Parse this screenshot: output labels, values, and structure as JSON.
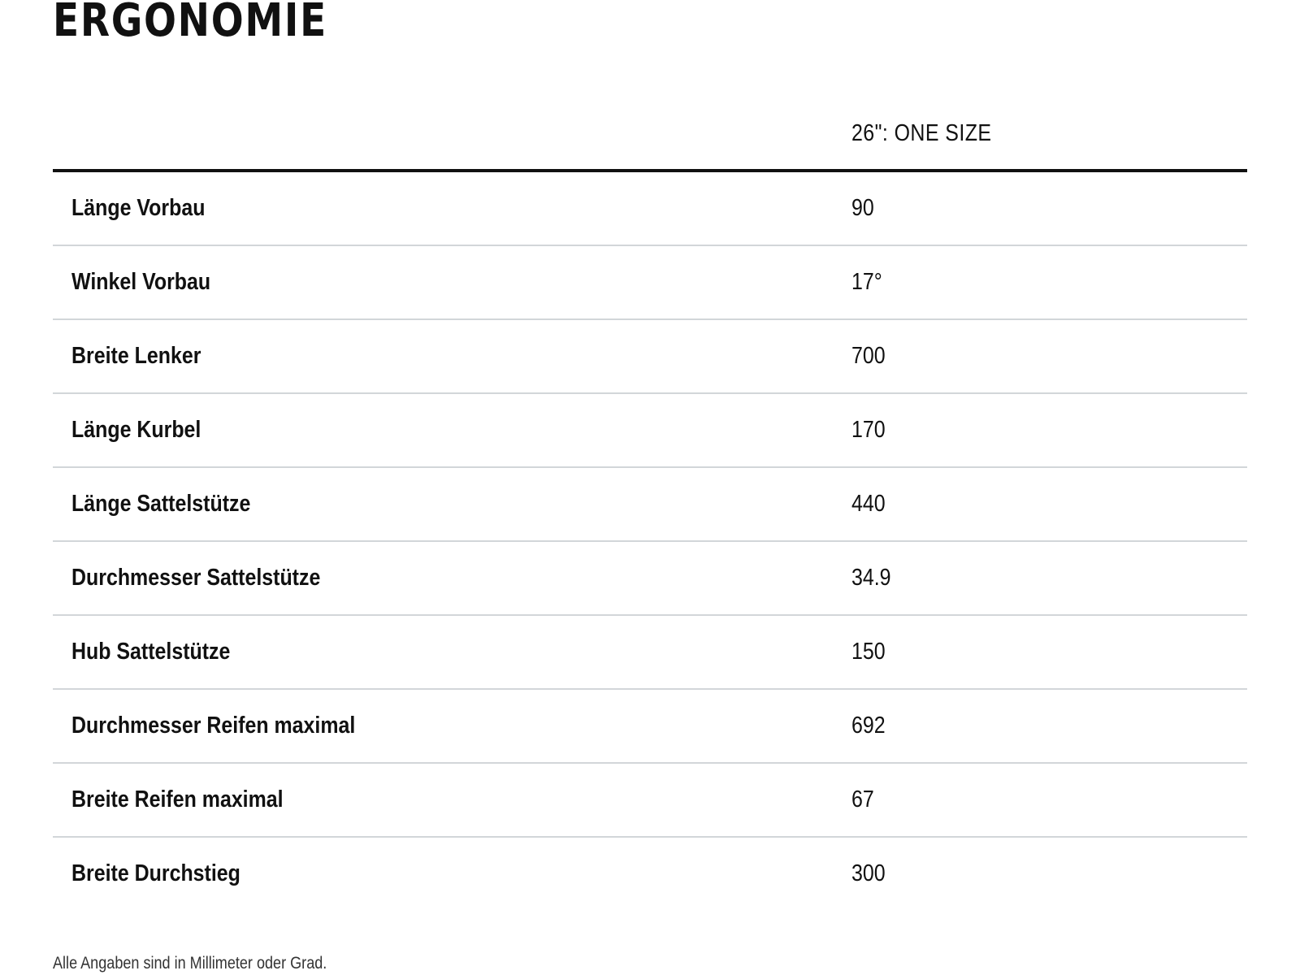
{
  "title": "ERGONOMIE",
  "table": {
    "column_header": "26\": ONE SIZE",
    "rows": [
      {
        "label": "Länge Vorbau",
        "value": "90"
      },
      {
        "label": "Winkel Vorbau",
        "value": "17°"
      },
      {
        "label": "Breite Lenker",
        "value": "700"
      },
      {
        "label": "Länge Kurbel",
        "value": "170"
      },
      {
        "label": "Länge Sattelstütze",
        "value": "440"
      },
      {
        "label": "Durchmesser Sattelstütze",
        "value": "34.9"
      },
      {
        "label": "Hub Sattelstütze",
        "value": "150"
      },
      {
        "label": "Durchmesser Reifen maximal",
        "value": "692"
      },
      {
        "label": "Breite Reifen maximal",
        "value": "67"
      },
      {
        "label": "Breite Durchstieg",
        "value": "300"
      }
    ]
  },
  "footnote": "Alle Angaben sind in Millimeter oder Grad."
}
